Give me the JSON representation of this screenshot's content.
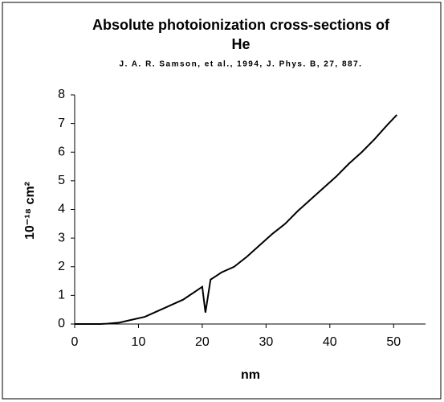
{
  "chart_data": {
    "type": "line",
    "title": [
      "Absolute photoionization cross-sections of",
      "He"
    ],
    "subtitle": "J. A. R. Samson, et al., 1994, J. Phys. B, 27, 887.",
    "x_label": "nm",
    "y_label": "10⁻¹⁸ cm²",
    "x": [
      0,
      2,
      4,
      5,
      7,
      9,
      11,
      13,
      15,
      17,
      18,
      19,
      20,
      20.5,
      21.3,
      22,
      23,
      25,
      27,
      29,
      31,
      33,
      35,
      37,
      39,
      41,
      43,
      45,
      47,
      49,
      50.5
    ],
    "series": [
      {
        "name": "He",
        "color": "#000000",
        "values": [
          0,
          0,
          0,
          0.01,
          0.05,
          0.15,
          0.25,
          0.45,
          0.65,
          0.85,
          1.0,
          1.15,
          1.3,
          0.4,
          1.55,
          1.65,
          1.8,
          2.0,
          2.35,
          2.75,
          3.15,
          3.5,
          3.95,
          4.35,
          4.75,
          5.15,
          5.6,
          6.0,
          6.45,
          6.95,
          7.3
        ]
      }
    ],
    "xlim": [
      0,
      55
    ],
    "xticks": [
      0,
      10,
      20,
      30,
      40,
      50
    ],
    "ylim": [
      0,
      8
    ],
    "yticks": [
      0,
      1,
      2,
      3,
      4,
      5,
      6,
      7,
      8
    ]
  }
}
